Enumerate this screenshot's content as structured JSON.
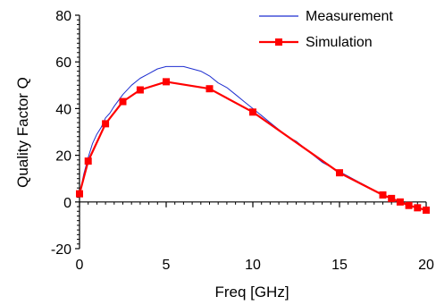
{
  "chart_data": {
    "type": "line",
    "xlabel": "Freq [GHz]",
    "ylabel": "Quality Factor Q",
    "xlim": [
      0,
      20
    ],
    "ylim": [
      -20,
      80
    ],
    "x_ticks": [
      0,
      5,
      10,
      15,
      20
    ],
    "y_ticks": [
      -20,
      0,
      20,
      40,
      60,
      80
    ],
    "x_tick_labels": [
      "0",
      "5",
      "10",
      "15",
      "20"
    ],
    "y_tick_labels": [
      "-20",
      "0",
      "20",
      "40",
      "60",
      "80"
    ],
    "grid": false,
    "legend_position": "top-right",
    "series": [
      {
        "name": "Measurement",
        "color": "#1f2fd0",
        "marker": "none",
        "x": [
          0,
          0.25,
          0.5,
          0.75,
          1,
          1.25,
          1.5,
          1.75,
          2,
          2.5,
          3,
          3.5,
          4,
          4.5,
          5,
          5.5,
          6,
          6.5,
          7,
          7.5,
          8,
          8.5,
          9,
          9.5,
          10,
          10.5,
          11,
          11.5,
          12,
          12.5,
          13,
          13.5,
          14,
          14.5,
          15,
          15.5,
          16,
          16.5,
          17,
          17.5
        ],
        "y": [
          3,
          12,
          19,
          25,
          29,
          32,
          36,
          38,
          41,
          46,
          50,
          53,
          55,
          57,
          58,
          58,
          58,
          57,
          56,
          54,
          51,
          49,
          46,
          43,
          40,
          37,
          34,
          31,
          28,
          26,
          23,
          20,
          17,
          15,
          13,
          11,
          9,
          7,
          5,
          3
        ]
      },
      {
        "name": "Simulation",
        "color": "#ff0000",
        "marker": "square",
        "x": [
          0,
          0.5,
          1.5,
          2.5,
          3.5,
          5,
          7.5,
          10,
          15,
          17.5,
          18,
          18.5,
          19,
          19.5,
          20
        ],
        "y": [
          3.5,
          17.5,
          33.5,
          43,
          48,
          51.5,
          48.5,
          38.5,
          12.5,
          3,
          1.5,
          0,
          -1.5,
          -2.5,
          -3.5
        ]
      }
    ]
  }
}
